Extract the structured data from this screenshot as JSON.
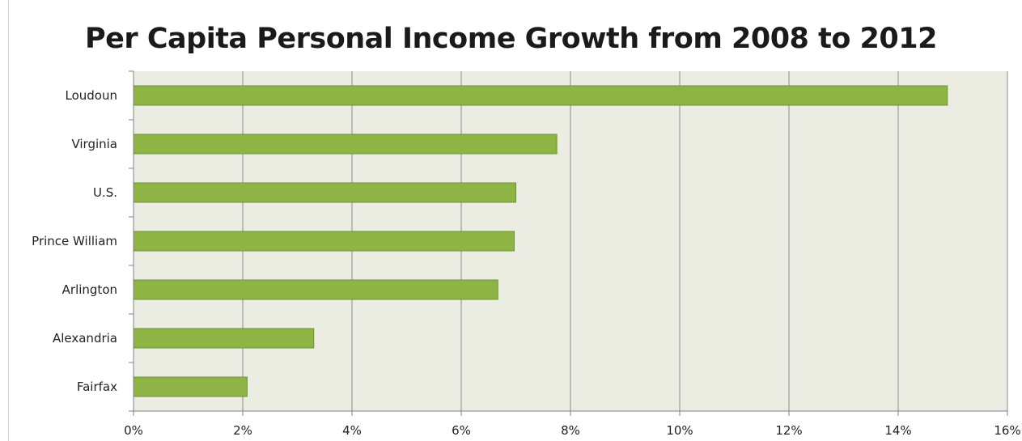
{
  "chart_data": {
    "type": "bar",
    "orientation": "horizontal",
    "title": "Per Capita Personal Income Growth from 2008 to 2012",
    "xlabel": "",
    "ylabel": "",
    "categories": [
      "Loudoun",
      "Virginia",
      "U.S.",
      "Prince William",
      "Arlington",
      "Alexandria",
      "Fairfax"
    ],
    "values": [
      14.9,
      7.75,
      7.0,
      6.97,
      6.67,
      3.3,
      2.08
    ],
    "value_unit": "%",
    "xlim": [
      0,
      16
    ],
    "x_ticks": [
      0,
      2,
      4,
      6,
      8,
      10,
      12,
      14,
      16
    ],
    "x_tick_labels": [
      "0%",
      "2%",
      "4%",
      "6%",
      "8%",
      "10%",
      "12%",
      "14%",
      "16%"
    ],
    "grid": true,
    "legend": "none"
  },
  "colors": {
    "bar_fill": "#8db444",
    "bar_stroke": "#6f9233",
    "plot_background": "#ebede3",
    "gridline": "#8c8c8c",
    "axis": "#808080"
  }
}
